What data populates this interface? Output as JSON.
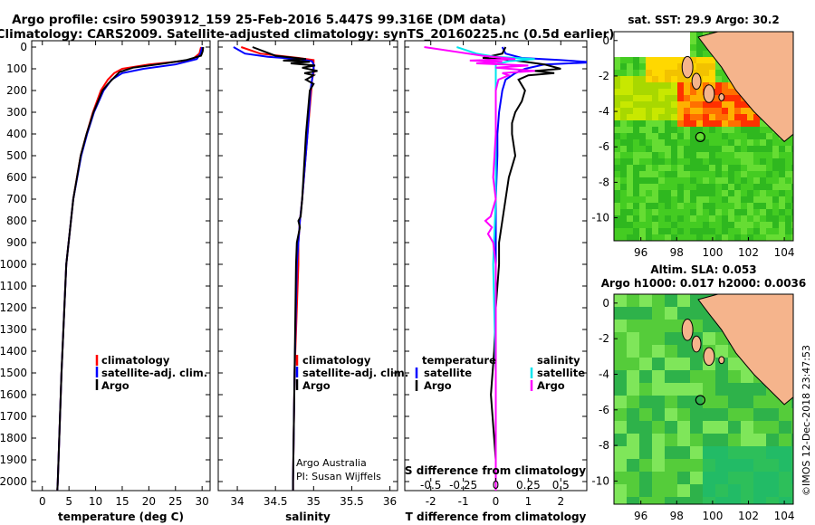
{
  "title_line1": "Argo profile: csiro 5903912_159 25-Feb-2016 5.447S 99.316E (DM data)",
  "title_line2": "Climatology: CARS2009. Satellite-adjusted climatology: synTS_20160225.nc (0.5d earlier)",
  "depth_ticks": [
    "0",
    "100",
    "200",
    "300",
    "400",
    "500",
    "600",
    "700",
    "800",
    "900",
    "1000",
    "1100",
    "1200",
    "1300",
    "1400",
    "1500",
    "1600",
    "1700",
    "1800",
    "1900",
    "2000"
  ],
  "legend_temp": [
    "climatology",
    "satellite-adj. clim.",
    "Argo"
  ],
  "legend_sal": [
    "climatology",
    "satellite-adj. clim.",
    "Argo"
  ],
  "legend_diff": {
    "temperature": "temperature",
    "salinity": "salinity",
    "satellite": "satellite",
    "argo": "Argo"
  },
  "credit_line1": "Argo Australia",
  "credit_line2": "PI: Susan Wijffels",
  "s_diff_label": "S difference from climatology",
  "s_diff_ticks": [
    "-0.5",
    "-0.25",
    "0",
    "0.25",
    "0.5"
  ],
  "map1_title": "sat. SST: 29.9 Argo: 30.2",
  "map2_title1": "Altim. SLA: 0.053",
  "map2_title2": "Argo h1000: 0.017 h2000: 0.0036",
  "watermark": "©IMOS 12-Dec-2018 23:47:53",
  "map_lon_ticks": [
    "96",
    "98",
    "100",
    "102",
    "104"
  ],
  "map_lat_ticks": [
    "0",
    "-2",
    "-4",
    "-6",
    "-8",
    "-10"
  ],
  "colors": {
    "climatology": "#ff0000",
    "satellite": "#0000ff",
    "argo": "#000000",
    "sat_salinity": "#00e5ee",
    "argo_salinity": "#ff00ff",
    "land": "#f5b48c"
  },
  "chart_data": [
    {
      "type": "line",
      "name": "temperature",
      "xlabel": "temperature (deg C)",
      "ylabel": "depth",
      "xlim": [
        -2,
        31.5
      ],
      "ylim": [
        2060,
        0
      ],
      "x_ticks": [
        "0",
        "5",
        "10",
        "15",
        "20",
        "25",
        "30"
      ],
      "series": [
        {
          "name": "climatology",
          "color": "#ff0000",
          "depth": [
            0,
            30,
            60,
            80,
            100,
            120,
            150,
            200,
            300,
            400,
            500,
            700,
            1000,
            1500,
            2000,
            2050
          ],
          "values": [
            29.8,
            29.5,
            28,
            20,
            15,
            13.5,
            12.3,
            11,
            9.5,
            8.3,
            7.2,
            5.8,
            4.5,
            3.6,
            2.9,
            2.8
          ]
        },
        {
          "name": "satellite-adj. clim.",
          "color": "#0000ff",
          "depth": [
            0,
            30,
            55,
            80,
            100,
            120,
            150,
            200,
            300,
            400,
            500,
            700,
            1000,
            1500,
            2000,
            2050
          ],
          "values": [
            30,
            29.7,
            29,
            25,
            19,
            15,
            13,
            11.5,
            9.7,
            8.4,
            7.3,
            5.8,
            4.5,
            3.6,
            2.9,
            2.8
          ]
        },
        {
          "name": "Argo",
          "color": "#000000",
          "depth": [
            0,
            20,
            40,
            60,
            75,
            95,
            115,
            140,
            170,
            200,
            300,
            400,
            500,
            700,
            1000,
            1500,
            2000,
            2050
          ],
          "values": [
            30.2,
            30.1,
            29.8,
            27,
            23,
            17,
            14.5,
            13.5,
            12.3,
            11.3,
            9.6,
            8.3,
            7.2,
            5.8,
            4.5,
            3.6,
            2.9,
            2.8
          ]
        }
      ]
    },
    {
      "type": "line",
      "name": "salinity",
      "xlabel": "salinity",
      "ylabel": "depth",
      "xlim": [
        33.75,
        36.1
      ],
      "ylim": [
        2060,
        0
      ],
      "x_ticks": [
        "34",
        "34.5",
        "35",
        "35.5",
        "36"
      ],
      "series": [
        {
          "name": "climatology",
          "color": "#ff0000",
          "depth": [
            0,
            30,
            50,
            60,
            70,
            90,
            120,
            150,
            200,
            400,
            700,
            800,
            900,
            1000,
            1500,
            2000,
            2050
          ],
          "values": [
            34.05,
            34.3,
            34.8,
            35.0,
            35.0,
            35.0,
            35.0,
            34.98,
            34.97,
            34.92,
            34.85,
            34.82,
            34.8,
            34.8,
            34.75,
            34.73,
            34.73
          ]
        },
        {
          "name": "satellite-adj. clim.",
          "color": "#0000ff",
          "depth": [
            0,
            30,
            45,
            55,
            65,
            80,
            100,
            150,
            200,
            400,
            700,
            800,
            900,
            1000,
            1500,
            2000,
            2050
          ],
          "values": [
            33.95,
            34.1,
            34.4,
            34.8,
            34.98,
            35.0,
            35.0,
            34.98,
            34.96,
            34.92,
            34.85,
            34.82,
            34.8,
            34.78,
            34.75,
            34.73,
            34.73
          ]
        },
        {
          "name": "Argo",
          "color": "#000000",
          "depth": [
            0,
            40,
            55,
            62,
            68,
            75,
            85,
            95,
            110,
            120,
            130,
            150,
            170,
            200,
            400,
            700,
            780,
            800,
            830,
            900,
            1000,
            1500,
            2000,
            2050
          ],
          "values": [
            34.2,
            34.5,
            34.9,
            34.6,
            34.95,
            34.7,
            35.02,
            34.85,
            35.05,
            34.88,
            35.0,
            34.9,
            35.0,
            34.95,
            34.9,
            34.85,
            34.83,
            34.8,
            34.82,
            34.78,
            34.77,
            34.75,
            34.73,
            34.73
          ]
        }
      ]
    },
    {
      "type": "line",
      "name": "difference",
      "xlabel": "T difference from climatology",
      "ylabel": "depth",
      "xlim": [
        -2.8,
        2.8
      ],
      "ylim": [
        2060,
        0
      ],
      "x_ticks": [
        "-2",
        "-1",
        "0",
        "1",
        "2"
      ],
      "s_xlim": [
        -0.7,
        0.7
      ],
      "series": [
        {
          "name": "temperature satellite",
          "color": "#0000ff",
          "axis": "T",
          "depth": [
            0,
            30,
            50,
            60,
            70,
            80,
            100,
            120,
            150,
            200,
            300,
            400,
            500,
            700,
            1000,
            1500,
            2000,
            2050
          ],
          "values": [
            0.2,
            0.3,
            0.8,
            2.0,
            3.0,
            1.5,
            0.9,
            0.6,
            0.3,
            0.2,
            0.1,
            0.05,
            0.05,
            0,
            0,
            0,
            0,
            0
          ]
        },
        {
          "name": "temperature Argo",
          "color": "#000000",
          "axis": "T",
          "depth": [
            0,
            30,
            50,
            60,
            70,
            80,
            100,
            110,
            120,
            130,
            150,
            200,
            250,
            300,
            350,
            400,
            500,
            600,
            700,
            800,
            900,
            1000,
            1200,
            1400,
            1500,
            1600,
            1700,
            1800,
            1900,
            2000,
            2050
          ],
          "values": [
            0.3,
            0.2,
            -0.4,
            0.5,
            1.0,
            1.5,
            2.0,
            1.2,
            1.8,
            1.0,
            0.7,
            0.9,
            0.8,
            0.6,
            0.5,
            0.5,
            0.6,
            0.4,
            0.3,
            0.2,
            0.1,
            0.1,
            0,
            -0.05,
            -0.1,
            -0.15,
            -0.1,
            -0.05,
            0,
            0,
            0
          ]
        },
        {
          "name": "salinity satellite",
          "color": "#00e5ee",
          "axis": "S",
          "depth": [
            0,
            30,
            45,
            55,
            65,
            80,
            100,
            150,
            200,
            400,
            700,
            1000,
            1500,
            2000,
            2050
          ],
          "values": [
            -0.3,
            -0.15,
            0.0,
            0.3,
            0.1,
            0.0,
            0.0,
            0.0,
            0.0,
            0.0,
            0.0,
            -0.02,
            0.0,
            0.0,
            0.0
          ]
        },
        {
          "name": "salinity Argo",
          "color": "#ff00ff",
          "axis": "S",
          "depth": [
            0,
            40,
            55,
            62,
            68,
            75,
            85,
            95,
            110,
            120,
            130,
            150,
            200,
            400,
            600,
            700,
            780,
            800,
            830,
            860,
            900,
            1000,
            1500,
            2000,
            2050
          ],
          "values": [
            -0.55,
            -0.1,
            0.15,
            -0.2,
            0.05,
            -0.15,
            0.25,
            0.0,
            0.3,
            0.05,
            0.1,
            0.02,
            0.0,
            0.0,
            -0.02,
            0.0,
            -0.04,
            -0.08,
            -0.03,
            -0.06,
            -0.02,
            0.0,
            0.0,
            0.0,
            0.0
          ]
        }
      ]
    }
  ]
}
